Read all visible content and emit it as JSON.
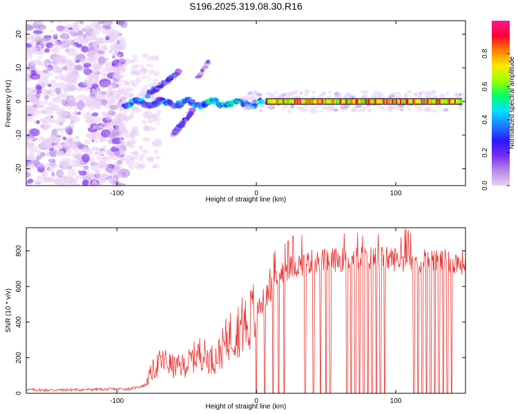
{
  "title": "S196.2025.319.08.30.R16",
  "chart_data": [
    {
      "type": "heatmap",
      "panel": "spectrogram",
      "xlabel": "Height of straight line (km)",
      "ylabel": "Frequency (Hz)",
      "xlim": [
        -165,
        150
      ],
      "ylim": [
        -25,
        24
      ],
      "xticks": [
        -100,
        0,
        100
      ],
      "yticks": [
        -20,
        -10,
        0,
        10,
        20
      ],
      "colorbar": {
        "label": "Normalized spectral amplitude",
        "range": [
          0,
          1
        ],
        "ticks": [
          0.0,
          0.2,
          0.4,
          0.6,
          0.8
        ],
        "colormap": [
          "#e9d0f5",
          "#b58ae8",
          "#7a2bf0",
          "#2a18ff",
          "#1b7fff",
          "#00e2ff",
          "#00ff66",
          "#9cff00",
          "#ffe800",
          "#ff8000",
          "#ff0033",
          "#ff1493"
        ]
      },
      "carrier": {
        "x_start": 7,
        "x_end": 147,
        "freq_hz": 0,
        "amplitude": 0.92,
        "outline_color": "#000000"
      },
      "features": [
        {
          "name": "noise region",
          "x_range": [
            -165,
            -95
          ],
          "freq_range": [
            -24,
            24
          ],
          "amplitude": 0.15
        },
        {
          "name": "upper branch",
          "x_range": [
            -75,
            -55
          ],
          "freq_range": [
            3,
            9
          ],
          "amplitude": 0.35
        },
        {
          "name": "upper branch 2",
          "x_range": [
            -40,
            -35
          ],
          "freq_range": [
            8,
            12
          ],
          "amplitude": 0.2
        },
        {
          "name": "lower branch",
          "x_range": [
            -58,
            -47
          ],
          "freq_range": [
            -10,
            -3
          ],
          "amplitude": 0.3
        },
        {
          "name": "central wave",
          "x_range": [
            -95,
            5
          ],
          "freq_range": [
            -3,
            2
          ],
          "amplitude": 0.45
        }
      ]
    },
    {
      "type": "line",
      "panel": "snr",
      "xlabel": "Height of straight line (km)",
      "ylabel": "SNR (10 * v/v)",
      "xlim": [
        -165,
        150
      ],
      "ylim": [
        0,
        930
      ],
      "xticks": [
        -100,
        0,
        100
      ],
      "yticks": [
        0,
        200,
        400,
        600,
        800
      ],
      "series": [
        {
          "name": "SNR",
          "color": "#e8302d",
          "x": [
            -165,
            -150,
            -130,
            -110,
            -90,
            -80,
            -75,
            -70,
            -65,
            -60,
            -55,
            -50,
            -45,
            -40,
            -35,
            -30,
            -25,
            -20,
            -15,
            -10,
            -5,
            0,
            5,
            10,
            15,
            20,
            25,
            30,
            35,
            40,
            45,
            50,
            55,
            60,
            65,
            70,
            75,
            80,
            85,
            90,
            95,
            100,
            105,
            110,
            115,
            120,
            125,
            130,
            135,
            140,
            145,
            150
          ],
          "values": [
            20,
            18,
            20,
            22,
            25,
            45,
            120,
            170,
            180,
            150,
            150,
            160,
            200,
            230,
            200,
            190,
            240,
            320,
            350,
            380,
            410,
            470,
            520,
            580,
            640,
            690,
            710,
            720,
            730,
            740,
            740,
            745,
            750,
            750,
            755,
            760,
            760,
            760,
            760,
            760,
            755,
            755,
            750,
            750,
            745,
            745,
            745,
            740,
            740,
            735,
            735,
            730
          ],
          "dropouts_x": [
            0,
            6,
            12,
            16,
            20,
            35,
            41,
            46,
            50,
            53,
            65,
            68,
            71,
            74,
            77,
            80,
            83,
            86,
            89,
            92,
            113,
            116,
            119,
            122,
            125,
            128,
            131,
            134,
            137,
            140
          ]
        }
      ]
    }
  ]
}
